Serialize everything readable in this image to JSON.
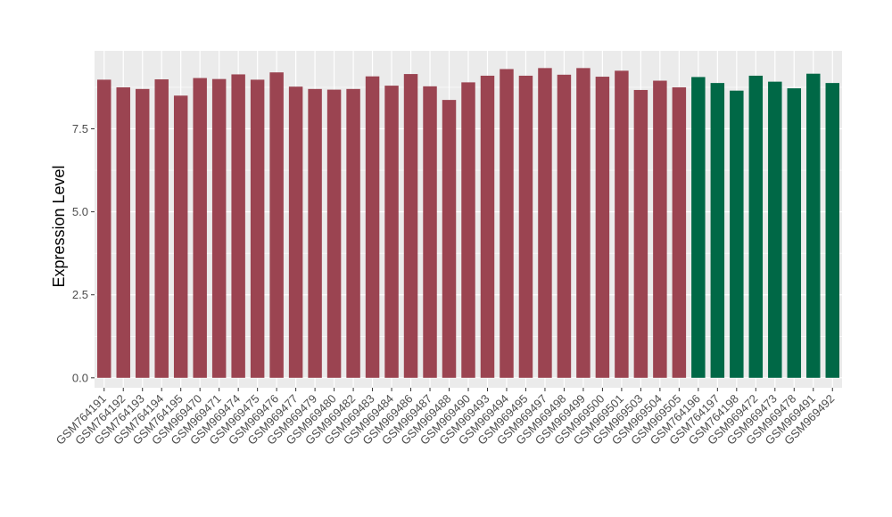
{
  "chart_data": {
    "type": "bar",
    "ylabel": "Expression Level",
    "xlabel": "",
    "ylim": [
      -0.3,
      9.85
    ],
    "yticks": [
      0.0,
      2.5,
      5.0,
      7.5
    ],
    "ytick_labels": [
      "0.0",
      "2.5",
      "5.0",
      "7.5"
    ],
    "grid": true,
    "legend": "none",
    "colors": {
      "group1": "#9b4451",
      "group2": "#006846",
      "panel": "#ebebeb",
      "grid": "#ffffff"
    },
    "categories": [
      "GSM764191",
      "GSM764192",
      "GSM764193",
      "GSM764194",
      "GSM764195",
      "GSM969470",
      "GSM969471",
      "GSM969474",
      "GSM969475",
      "GSM969476",
      "GSM969477",
      "GSM969479",
      "GSM969480",
      "GSM969482",
      "GSM969483",
      "GSM969484",
      "GSM969486",
      "GSM969487",
      "GSM969488",
      "GSM969490",
      "GSM969493",
      "GSM969494",
      "GSM969495",
      "GSM969497",
      "GSM969498",
      "GSM969499",
      "GSM969500",
      "GSM969501",
      "GSM969503",
      "GSM969504",
      "GSM969505",
      "GSM764196",
      "GSM764197",
      "GSM764198",
      "GSM969472",
      "GSM969473",
      "GSM969478",
      "GSM969491",
      "GSM969492"
    ],
    "values": [
      8.98,
      8.75,
      8.7,
      8.99,
      8.5,
      9.03,
      9.0,
      9.14,
      8.98,
      9.2,
      8.77,
      8.7,
      8.68,
      8.7,
      9.08,
      8.8,
      9.15,
      8.78,
      8.37,
      8.9,
      9.1,
      9.3,
      9.1,
      9.33,
      9.13,
      9.33,
      9.07,
      9.25,
      8.67,
      8.95,
      8.75,
      9.06,
      8.88,
      8.65,
      9.1,
      8.92,
      8.72,
      9.16,
      8.88
    ],
    "groups": [
      1,
      1,
      1,
      1,
      1,
      1,
      1,
      1,
      1,
      1,
      1,
      1,
      1,
      1,
      1,
      1,
      1,
      1,
      1,
      1,
      1,
      1,
      1,
      1,
      1,
      1,
      1,
      1,
      1,
      1,
      1,
      2,
      2,
      2,
      2,
      2,
      2,
      2,
      2
    ]
  }
}
